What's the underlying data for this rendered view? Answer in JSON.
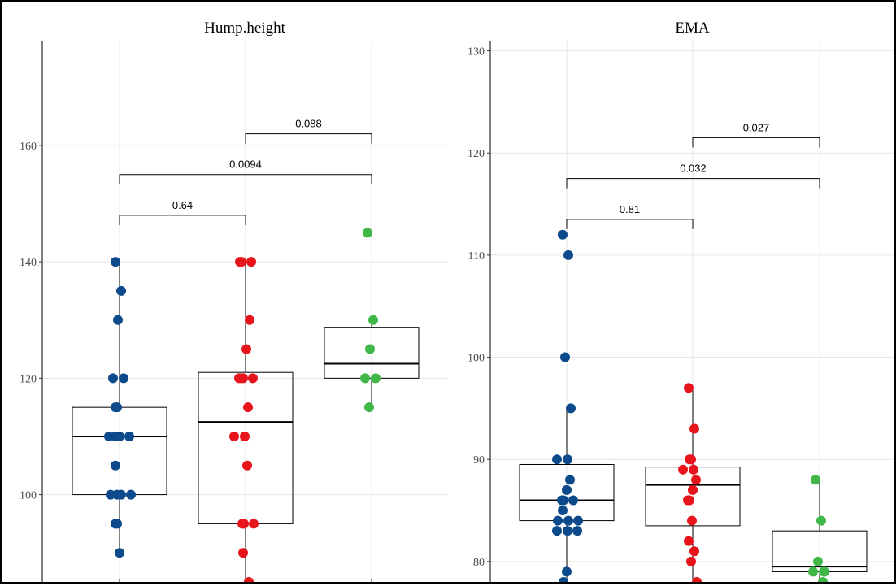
{
  "chart_data": [
    {
      "type": "box",
      "title": "Hump.height",
      "xlabel": "",
      "ylabel": "",
      "ylim": [
        85,
        178
      ],
      "yticks": [
        100,
        120,
        140,
        160
      ],
      "grid": true,
      "groups": [
        {
          "color": "#0d4a8c",
          "box": {
            "q1": 100,
            "median": 110,
            "q3": 115,
            "whisker_low": 90,
            "whisker_high": 140
          },
          "points": [
            140,
            135,
            130,
            120,
            120,
            115,
            115,
            110,
            110,
            110,
            110,
            105,
            100,
            100,
            100,
            100,
            95,
            95,
            90
          ]
        },
        {
          "color": "#e8141c",
          "box": {
            "q1": 95,
            "median": 112.5,
            "q3": 121,
            "whisker_low": 85,
            "whisker_high": 140
          },
          "points": [
            140,
            140,
            140,
            130,
            125,
            120,
            120,
            120,
            120,
            115,
            110,
            110,
            105,
            95,
            95,
            95,
            90,
            85
          ]
        },
        {
          "color": "#3fb847",
          "box": {
            "q1": 120,
            "median": 122.5,
            "q3": 128.75,
            "whisker_low": 115,
            "whisker_high": 130
          },
          "points": [
            145,
            130,
            125,
            120,
            120,
            115
          ]
        }
      ],
      "comparisons": [
        {
          "from": 1,
          "to": 2,
          "label": "0.64",
          "y": 148
        },
        {
          "from": 1,
          "to": 3,
          "label": "0.0094",
          "y": 155
        },
        {
          "from": 2,
          "to": 3,
          "label": "0.088",
          "y": 162
        }
      ]
    },
    {
      "type": "box",
      "title": "EMA",
      "xlabel": "",
      "ylabel": "",
      "ylim": [
        78,
        131
      ],
      "yticks": [
        80,
        90,
        100,
        110,
        120,
        130
      ],
      "grid": true,
      "groups": [
        {
          "color": "#0d4a8c",
          "box": {
            "q1": 84,
            "median": 86,
            "q3": 89.5,
            "whisker_low": 78,
            "whisker_high": 95
          },
          "points": [
            112,
            110,
            100,
            95,
            90,
            90,
            88,
            87,
            86,
            86,
            86,
            85,
            84,
            84,
            84,
            83,
            83,
            83,
            79,
            78
          ]
        },
        {
          "color": "#e8141c",
          "box": {
            "q1": 83.5,
            "median": 87.5,
            "q3": 89.25,
            "whisker_low": 78,
            "whisker_high": 97
          },
          "points": [
            97,
            93,
            90,
            90,
            89,
            89,
            88,
            87,
            86,
            86,
            84,
            82,
            81,
            80,
            78
          ]
        },
        {
          "color": "#3fb847",
          "box": {
            "q1": 79,
            "median": 79.5,
            "q3": 83,
            "whisker_low": 78,
            "whisker_high": 88
          },
          "points": [
            88,
            84,
            80,
            79,
            79,
            79,
            78
          ]
        }
      ],
      "comparisons": [
        {
          "from": 1,
          "to": 2,
          "label": "0.81",
          "y": 113.5
        },
        {
          "from": 1,
          "to": 3,
          "label": "0.032",
          "y": 117.5
        },
        {
          "from": 2,
          "to": 3,
          "label": "0.027",
          "y": 121.5
        }
      ]
    }
  ]
}
